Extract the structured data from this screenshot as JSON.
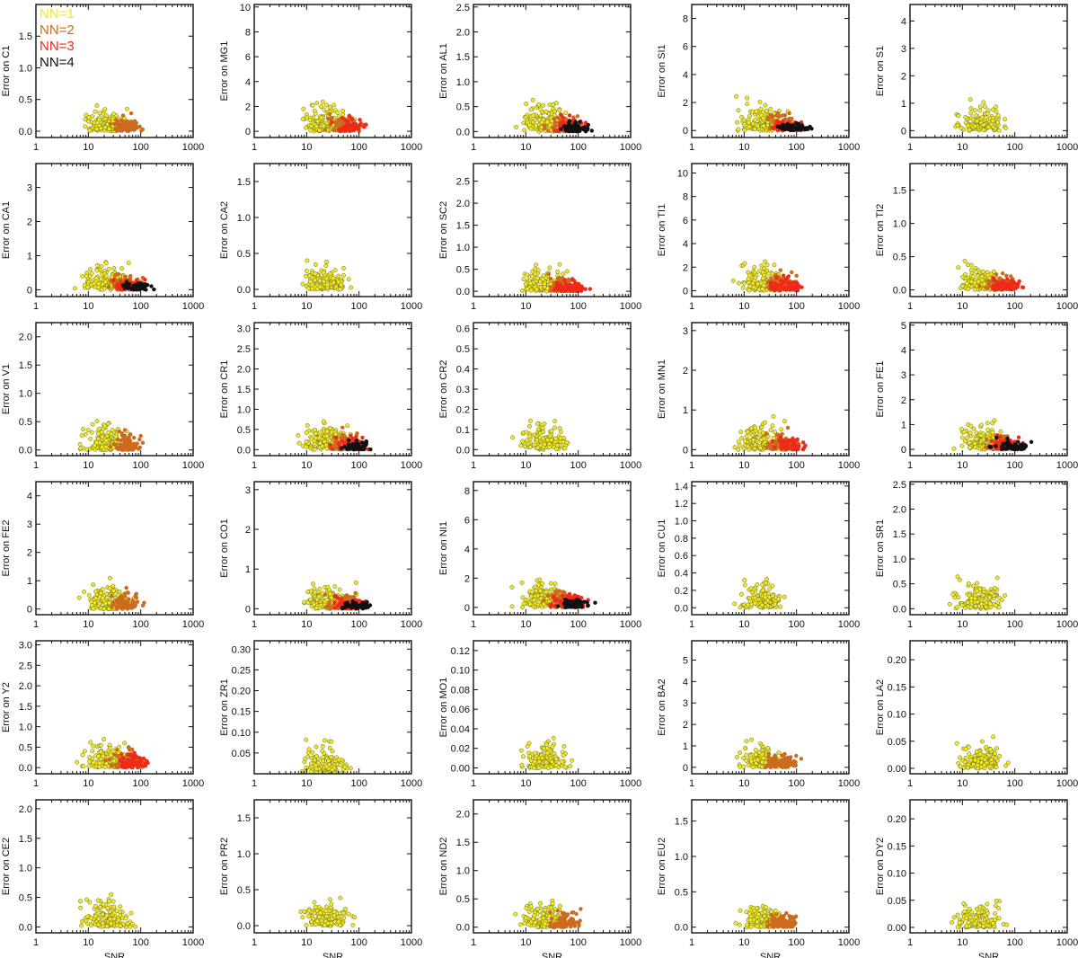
{
  "legend": [
    {
      "label": "NN=1",
      "color": "#f0e828"
    },
    {
      "label": "NN=2",
      "color": "#cc6a1e"
    },
    {
      "label": "NN=3",
      "color": "#ee2a18"
    },
    {
      "label": "NN=4",
      "color": "#111111"
    }
  ],
  "chart_data": [
    {
      "type": "scatter",
      "ylabel": "Error on C1",
      "yticks": [
        "0.0",
        "0.5",
        "1.0",
        "1.5"
      ],
      "ylim": [
        -0.1,
        2.0
      ],
      "xlim": [
        1,
        1000
      ],
      "xticks": [
        "1",
        "10",
        "100",
        "1000"
      ],
      "xlabel": "",
      "series": [
        "NN=1",
        "NN=2"
      ]
    },
    {
      "type": "scatter",
      "ylabel": "Error on MG1",
      "yticks": [
        "0",
        "2",
        "4",
        "6",
        "8",
        "10"
      ],
      "ylim": [
        -0.5,
        10.2
      ],
      "xlim": [
        1,
        1000
      ],
      "xticks": [
        "1",
        "10",
        "100",
        "1000"
      ],
      "xlabel": "",
      "series": [
        "NN=1",
        "NN=2",
        "NN=3"
      ]
    },
    {
      "type": "scatter",
      "ylabel": "Error on AL1",
      "yticks": [
        "0.0",
        "0.5",
        "1.0",
        "1.5",
        "2.0",
        "2.5"
      ],
      "ylim": [
        -0.12,
        2.55
      ],
      "xlim": [
        1,
        1000
      ],
      "xticks": [
        "1",
        "10",
        "100",
        "1000"
      ],
      "xlabel": "",
      "series": [
        "NN=1",
        "NN=2",
        "NN=3",
        "NN=4"
      ]
    },
    {
      "type": "scatter",
      "ylabel": "Error on SI1",
      "yticks": [
        "0",
        "2",
        "4",
        "6",
        "8"
      ],
      "ylim": [
        -0.5,
        9.0
      ],
      "xlim": [
        1,
        1000
      ],
      "xticks": [
        "1",
        "10",
        "100",
        "1000"
      ],
      "xlabel": "",
      "series": [
        "NN=1",
        "NN=2",
        "NN=3",
        "NN=4"
      ]
    },
    {
      "type": "scatter",
      "ylabel": "Error on S1",
      "yticks": [
        "0",
        "1",
        "2",
        "3",
        "4"
      ],
      "ylim": [
        -0.25,
        4.6
      ],
      "xlim": [
        1,
        1000
      ],
      "xticks": [
        "1",
        "10",
        "100",
        "1000"
      ],
      "xlabel": "",
      "series": [
        "NN=1"
      ]
    },
    {
      "type": "scatter",
      "ylabel": "Error on CA1",
      "yticks": [
        "0",
        "1",
        "2",
        "3"
      ],
      "ylim": [
        -0.2,
        3.7
      ],
      "xlim": [
        1,
        1000
      ],
      "xticks": [
        "1",
        "10",
        "100",
        "1000"
      ],
      "xlabel": "",
      "series": [
        "NN=1",
        "NN=2",
        "NN=3",
        "NN=4"
      ]
    },
    {
      "type": "scatter",
      "ylabel": "Error on CA2",
      "yticks": [
        "0.0",
        "0.5",
        "1.0",
        "1.5"
      ],
      "ylim": [
        -0.1,
        1.75
      ],
      "xlim": [
        1,
        1000
      ],
      "xticks": [
        "1",
        "10",
        "100",
        "1000"
      ],
      "xlabel": "",
      "series": [
        "NN=1"
      ]
    },
    {
      "type": "scatter",
      "ylabel": "Error on SC2",
      "yticks": [
        "0.0",
        "0.5",
        "1.0",
        "1.5",
        "2.0",
        "2.5"
      ],
      "ylim": [
        -0.12,
        2.9
      ],
      "xlim": [
        1,
        1000
      ],
      "xticks": [
        "1",
        "10",
        "100",
        "1000"
      ],
      "xlabel": "",
      "series": [
        "NN=1",
        "NN=2",
        "NN=3"
      ]
    },
    {
      "type": "scatter",
      "ylabel": "Error on TI1",
      "yticks": [
        "0",
        "2",
        "4",
        "6",
        "8",
        "10"
      ],
      "ylim": [
        -0.5,
        10.8
      ],
      "xlim": [
        1,
        1000
      ],
      "xticks": [
        "1",
        "10",
        "100",
        "1000"
      ],
      "xlabel": "",
      "series": [
        "NN=1",
        "NN=2",
        "NN=3"
      ]
    },
    {
      "type": "scatter",
      "ylabel": "Error on TI2",
      "yticks": [
        "0.0",
        "0.5",
        "1.0",
        "1.5"
      ],
      "ylim": [
        -0.1,
        1.9
      ],
      "xlim": [
        1,
        1000
      ],
      "xticks": [
        "1",
        "10",
        "100",
        "1000"
      ],
      "xlabel": "",
      "series": [
        "NN=1",
        "NN=2",
        "NN=3"
      ]
    },
    {
      "type": "scatter",
      "ylabel": "Error on V1",
      "yticks": [
        "0.0",
        "0.5",
        "1.0",
        "1.5",
        "2.0"
      ],
      "ylim": [
        -0.1,
        2.25
      ],
      "xlim": [
        1,
        1000
      ],
      "xticks": [
        "1",
        "10",
        "100",
        "1000"
      ],
      "xlabel": "",
      "series": [
        "NN=1",
        "NN=2"
      ]
    },
    {
      "type": "scatter",
      "ylabel": "Error on CR1",
      "yticks": [
        "0.0",
        "0.5",
        "1.0",
        "1.5",
        "2.0",
        "2.5",
        "3.0"
      ],
      "ylim": [
        -0.15,
        3.15
      ],
      "xlim": [
        1,
        1000
      ],
      "xticks": [
        "1",
        "10",
        "100",
        "1000"
      ],
      "xlabel": "",
      "series": [
        "NN=1",
        "NN=2",
        "NN=3",
        "NN=4"
      ]
    },
    {
      "type": "scatter",
      "ylabel": "Error on CR2",
      "yticks": [
        "0.0",
        "0.1",
        "0.2",
        "0.3",
        "0.4",
        "0.5",
        "0.6"
      ],
      "ylim": [
        -0.03,
        0.63
      ],
      "xlim": [
        1,
        1000
      ],
      "xticks": [
        "1",
        "10",
        "100",
        "1000"
      ],
      "xlabel": "",
      "series": [
        "NN=1"
      ]
    },
    {
      "type": "scatter",
      "ylabel": "Error on MN1",
      "yticks": [
        "0",
        "1",
        "2",
        "3"
      ],
      "ylim": [
        -0.15,
        3.2
      ],
      "xlim": [
        1,
        1000
      ],
      "xticks": [
        "1",
        "10",
        "100",
        "1000"
      ],
      "xlabel": "",
      "series": [
        "NN=1",
        "NN=2",
        "NN=3"
      ]
    },
    {
      "type": "scatter",
      "ylabel": "Error on FE1",
      "yticks": [
        "0",
        "1",
        "2",
        "3",
        "4",
        "5"
      ],
      "ylim": [
        -0.25,
        5.1
      ],
      "xlim": [
        1,
        1000
      ],
      "xticks": [
        "1",
        "10",
        "100",
        "1000"
      ],
      "xlabel": "",
      "series": [
        "NN=1",
        "NN=2",
        "NN=3",
        "NN=4"
      ]
    },
    {
      "type": "scatter",
      "ylabel": "Error on FE2",
      "yticks": [
        "0",
        "1",
        "2",
        "3",
        "4"
      ],
      "ylim": [
        -0.2,
        4.5
      ],
      "xlim": [
        1,
        1000
      ],
      "xticks": [
        "1",
        "10",
        "100",
        "1000"
      ],
      "xlabel": "",
      "series": [
        "NN=1",
        "NN=2"
      ]
    },
    {
      "type": "scatter",
      "ylabel": "Error on CO1",
      "yticks": [
        "0",
        "1",
        "2",
        "3"
      ],
      "ylim": [
        -0.15,
        3.2
      ],
      "xlim": [
        1,
        1000
      ],
      "xticks": [
        "1",
        "10",
        "100",
        "1000"
      ],
      "xlabel": "",
      "series": [
        "NN=1",
        "NN=2",
        "NN=3",
        "NN=4"
      ]
    },
    {
      "type": "scatter",
      "ylabel": "Error on NI1",
      "yticks": [
        "0",
        "2",
        "4",
        "6",
        "8"
      ],
      "ylim": [
        -0.5,
        8.6
      ],
      "xlim": [
        1,
        1000
      ],
      "xticks": [
        "1",
        "10",
        "100",
        "1000"
      ],
      "xlabel": "",
      "series": [
        "NN=1",
        "NN=2",
        "NN=3",
        "NN=4"
      ]
    },
    {
      "type": "scatter",
      "ylabel": "Error on CU1",
      "yticks": [
        "0.0",
        "0.2",
        "0.4",
        "0.6",
        "0.8",
        "1.0",
        "1.2",
        "1.4"
      ],
      "ylim": [
        -0.08,
        1.45
      ],
      "xlim": [
        1,
        1000
      ],
      "xticks": [
        "1",
        "10",
        "100",
        "1000"
      ],
      "xlabel": "",
      "series": [
        "NN=1"
      ]
    },
    {
      "type": "scatter",
      "ylabel": "Error on SR1",
      "yticks": [
        "0.0",
        "0.5",
        "1.0",
        "1.5",
        "2.0",
        "2.5"
      ],
      "ylim": [
        -0.12,
        2.55
      ],
      "xlim": [
        1,
        1000
      ],
      "xticks": [
        "1",
        "10",
        "100",
        "1000"
      ],
      "xlabel": "",
      "series": [
        "NN=1"
      ]
    },
    {
      "type": "scatter",
      "ylabel": "Error on Y2",
      "yticks": [
        "0.0",
        "0.5",
        "1.0",
        "1.5",
        "2.0",
        "2.5",
        "3.0"
      ],
      "ylim": [
        -0.15,
        3.1
      ],
      "xlim": [
        1,
        1000
      ],
      "xticks": [
        "1",
        "10",
        "100",
        "1000"
      ],
      "xlabel": "",
      "series": [
        "NN=1",
        "NN=2",
        "NN=3"
      ]
    },
    {
      "type": "scatter",
      "ylabel": "Error on ZR1",
      "yticks": [
        "0.05",
        "0.10",
        "0.15",
        "0.20",
        "0.25",
        "0.30"
      ],
      "ylim": [
        0.0,
        0.32
      ],
      "xlim": [
        1,
        1000
      ],
      "xticks": [
        "1",
        "10",
        "100",
        "1000"
      ],
      "xlabel": "",
      "series": [
        "NN=1"
      ]
    },
    {
      "type": "scatter",
      "ylabel": "Error on MO1",
      "yticks": [
        "0.00",
        "0.02",
        "0.04",
        "0.06",
        "0.08",
        "0.10",
        "0.12"
      ],
      "ylim": [
        -0.006,
        0.13
      ],
      "xlim": [
        1,
        1000
      ],
      "xticks": [
        "1",
        "10",
        "100",
        "1000"
      ],
      "xlabel": "",
      "series": [
        "NN=1"
      ]
    },
    {
      "type": "scatter",
      "ylabel": "Error on BA2",
      "yticks": [
        "0",
        "1",
        "2",
        "3",
        "4",
        "5"
      ],
      "ylim": [
        -0.3,
        5.9
      ],
      "xlim": [
        1,
        1000
      ],
      "xticks": [
        "1",
        "10",
        "100",
        "1000"
      ],
      "xlabel": "",
      "series": [
        "NN=1",
        "NN=2"
      ]
    },
    {
      "type": "scatter",
      "ylabel": "Error on LA2",
      "yticks": [
        "0.00",
        "0.05",
        "0.10",
        "0.15",
        "0.20"
      ],
      "ylim": [
        -0.01,
        0.235
      ],
      "xlim": [
        1,
        1000
      ],
      "xticks": [
        "1",
        "10",
        "100",
        "1000"
      ],
      "xlabel": "",
      "series": [
        "NN=1"
      ]
    },
    {
      "type": "scatter",
      "ylabel": "Error on CE2",
      "yticks": [
        "0.0",
        "0.5",
        "1.0",
        "1.5",
        "2.0"
      ],
      "ylim": [
        -0.1,
        2.15
      ],
      "xlim": [
        1,
        1000
      ],
      "xticks": [
        "1",
        "10",
        "100",
        "1000"
      ],
      "xlabel": "SNR",
      "series": [
        "NN=1"
      ]
    },
    {
      "type": "scatter",
      "ylabel": "Error on PR2",
      "yticks": [
        "0.0",
        "0.5",
        "1.0",
        "1.5"
      ],
      "ylim": [
        -0.1,
        1.75
      ],
      "xlim": [
        1,
        1000
      ],
      "xticks": [
        "1",
        "10",
        "100",
        "1000"
      ],
      "xlabel": "SNR",
      "series": [
        "NN=1"
      ]
    },
    {
      "type": "scatter",
      "ylabel": "Error on ND2",
      "yticks": [
        "0.0",
        "0.5",
        "1.0",
        "1.5",
        "2.0"
      ],
      "ylim": [
        -0.1,
        2.25
      ],
      "xlim": [
        1,
        1000
      ],
      "xticks": [
        "1",
        "10",
        "100",
        "1000"
      ],
      "xlabel": "SNR",
      "series": [
        "NN=1",
        "NN=2"
      ]
    },
    {
      "type": "scatter",
      "ylabel": "Error on EU2",
      "yticks": [
        "0.0",
        "0.5",
        "1.0",
        "1.5"
      ],
      "ylim": [
        -0.08,
        1.8
      ],
      "xlim": [
        1,
        1000
      ],
      "xticks": [
        "1",
        "10",
        "100",
        "1000"
      ],
      "xlabel": "SNR",
      "series": [
        "NN=1",
        "NN=2"
      ]
    },
    {
      "type": "scatter",
      "ylabel": "Error on DY2",
      "yticks": [
        "0.00",
        "0.05",
        "0.10",
        "0.15",
        "0.20"
      ],
      "ylim": [
        -0.01,
        0.235
      ],
      "xlim": [
        1,
        1000
      ],
      "xticks": [
        "1",
        "10",
        "100",
        "1000"
      ],
      "xlabel": "SNR",
      "series": [
        "NN=1"
      ]
    }
  ]
}
